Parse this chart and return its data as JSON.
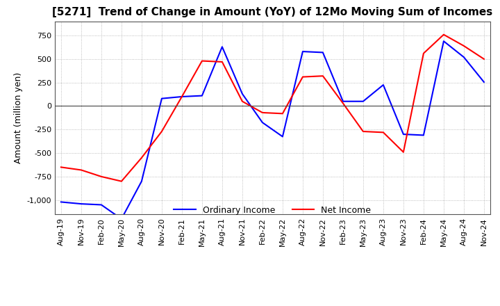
{
  "title": "[5271]  Trend of Change in Amount (YoY) of 12Mo Moving Sum of Incomes",
  "ylabel": "Amount (million yen)",
  "ylim": [
    -1150,
    900
  ],
  "yticks": [
    -1000,
    -750,
    -500,
    -250,
    0,
    250,
    500,
    750
  ],
  "x_labels": [
    "Aug-19",
    "Nov-19",
    "Feb-20",
    "May-20",
    "Aug-20",
    "Nov-20",
    "Feb-21",
    "May-21",
    "Aug-21",
    "Nov-21",
    "Feb-22",
    "May-22",
    "Aug-22",
    "Nov-22",
    "Feb-23",
    "May-23",
    "Aug-23",
    "Nov-23",
    "Feb-24",
    "May-24",
    "Aug-24",
    "Nov-24"
  ],
  "ordinary_income": [
    -1020,
    -1040,
    -1050,
    -1200,
    -800,
    80,
    100,
    110,
    630,
    130,
    -175,
    -325,
    580,
    570,
    50,
    50,
    225,
    -300,
    -310,
    690,
    520,
    255
  ],
  "net_income": [
    -650,
    -680,
    -750,
    -800,
    -550,
    -270,
    100,
    480,
    470,
    50,
    -70,
    -80,
    310,
    320,
    30,
    -270,
    -280,
    -490,
    560,
    760,
    640,
    500
  ],
  "ordinary_color": "#0000ff",
  "net_color": "#ff0000",
  "line_width": 1.5,
  "title_fontsize": 11,
  "label_fontsize": 9,
  "tick_fontsize": 8,
  "legend_fontsize": 9,
  "grid_color": "#aaaaaa",
  "grid_style": "dotted",
  "background_color": "#ffffff"
}
